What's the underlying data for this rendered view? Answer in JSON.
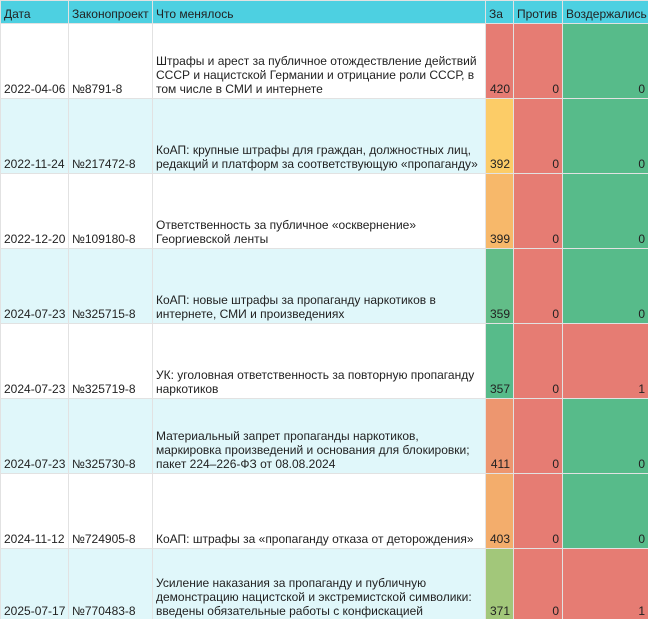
{
  "table": {
    "headers": [
      "Дата",
      "Законопроект",
      "Что менялось",
      "За",
      "Против",
      "Воздержались"
    ],
    "rows": [
      [
        "2022-04-06",
        "№8791-8",
        "Штрафы и арест за публичное отождествление действий СССР и нацистской Германии и отрицание роли СССР, в том числе в СМИ и интернете",
        420,
        0,
        0
      ],
      [
        "2022-11-24",
        "№217472-8",
        "КоАП: крупные штрафы для граждан, должностных лиц, редакций и платформ за соответствующую «пропаганду»",
        392,
        0,
        0
      ],
      [
        "2022-12-20",
        "№109180-8",
        "Ответственность за публичное «осквернение» Георгиевской ленты",
        399,
        0,
        0
      ],
      [
        "2024-07-23",
        "№325715-8",
        "КоАП: новые штрафы за пропаганду наркотиков в интернете, СМИ и произведениях",
        359,
        0,
        0
      ],
      [
        "2024-07-23",
        "№325719-8",
        "УК: уголовная ответственность за повторную пропаганду наркотиков",
        357,
        0,
        1
      ],
      [
        "2024-07-23",
        "№325730-8",
        "Материальный запрет пропаганды наркотиков, маркировка произведений и основания для блокировки; пакет 224–226-ФЗ от 08.08.2024",
        411,
        0,
        0
      ],
      [
        "2024-11-12",
        "№724905-8",
        "КоАП: штрафы за «пропаганду отказа от деторождения»",
        403,
        0,
        0
      ],
      [
        "2025-07-17",
        "№770483-8",
        "Усиление наказания за пропаганду и публичную демонстрацию нацистской и экстремистской символики: введены обязательные работы с конфискацией",
        371,
        0,
        1
      ]
    ]
  }
}
